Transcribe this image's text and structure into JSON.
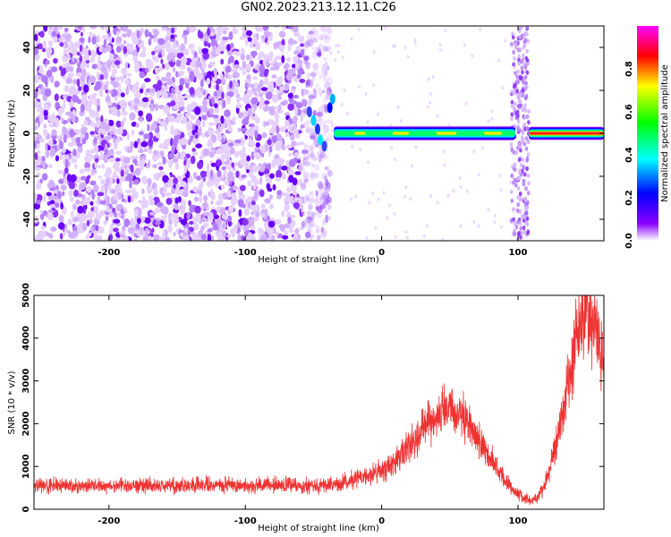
{
  "title": "GN02.2023.213.12.11.C26",
  "chart_data": [
    {
      "type": "heatmap",
      "xlabel": "Height of straight line (km)",
      "ylabel": "Frequency (Hz)",
      "xlim": [
        -255,
        163
      ],
      "ylim": [
        -50,
        50
      ],
      "xticks": [
        -200,
        -100,
        0,
        100
      ],
      "yticks": [
        -40,
        -20,
        0,
        20,
        40
      ],
      "colorbar": {
        "label": "Normalized spectral amplitude",
        "range": [
          0,
          1
        ],
        "ticks": [
          "0.0",
          "0.2",
          "0.4",
          "0.6",
          "0.8"
        ],
        "colormap": [
          "#ffffff",
          "#8a00ff",
          "#0000ff",
          "#00ffff",
          "#00ff00",
          "#ffff00",
          "#ff0000",
          "#ff00ff"
        ]
      },
      "features": {
        "noise_region_x": [
          -255,
          -50
        ],
        "noise_amplitude_approx": [
          0.0,
          0.15
        ],
        "band_freq_hz": 0,
        "band_segments": [
          {
            "x": [
              -35,
              100
            ],
            "amplitude_approx": 0.45
          },
          {
            "x": [
              100,
              163
            ],
            "amplitude_approx": 0.95
          }
        ],
        "vertical_noise_streak_x": [
          95,
          108
        ]
      }
    },
    {
      "type": "line",
      "xlabel": "Height of straight line (km)",
      "ylabel": "SNR (10 * v/v)",
      "xlim": [
        -255,
        163
      ],
      "ylim": [
        0,
        5000
      ],
      "xticks": [
        -200,
        -100,
        0,
        100
      ],
      "yticks": [
        0,
        1000,
        2000,
        3000,
        4000,
        5000
      ],
      "color": "#ee3333",
      "series": [
        {
          "x": [
            -255,
            -200,
            -150,
            -100,
            -60,
            -30,
            -20,
            -10,
            0,
            10,
            20,
            30,
            40,
            50,
            60,
            70,
            80,
            90,
            100,
            105,
            110,
            115,
            120,
            130,
            140,
            145,
            150,
            155,
            160,
            163
          ],
          "values": [
            550,
            560,
            560,
            560,
            560,
            580,
            700,
            800,
            900,
            1100,
            1500,
            1900,
            2200,
            2300,
            2100,
            1700,
            1200,
            700,
            350,
            250,
            200,
            300,
            600,
            1800,
            3500,
            4300,
            4700,
            4500,
            3700,
            3400
          ]
        }
      ]
    }
  ]
}
